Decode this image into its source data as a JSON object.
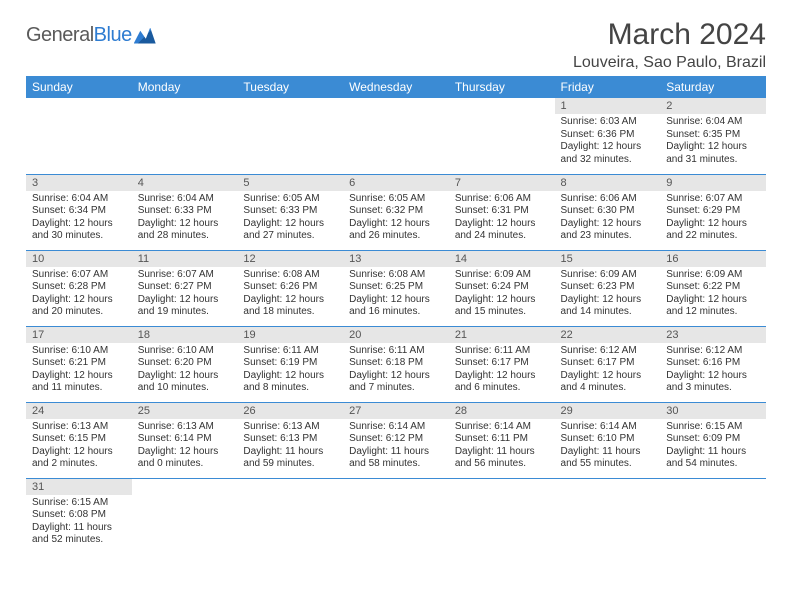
{
  "brand": {
    "part1": "General",
    "part2": "Blue"
  },
  "title": "March 2024",
  "location": "Louveira, Sao Paulo, Brazil",
  "colors": {
    "header_bg": "#3b8bd4",
    "header_text": "#ffffff",
    "daynum_bg": "#e6e6e6",
    "border": "#3b8bd4",
    "title_color": "#444444",
    "body_text": "#333333"
  },
  "typography": {
    "title_fontsize": 30,
    "location_fontsize": 16,
    "dayhead_fontsize": 12,
    "daynum_fontsize": 11,
    "cell_fontsize": 10
  },
  "day_headers": [
    "Sunday",
    "Monday",
    "Tuesday",
    "Wednesday",
    "Thursday",
    "Friday",
    "Saturday"
  ],
  "weeks": [
    [
      null,
      null,
      null,
      null,
      null,
      {
        "n": "1",
        "sr": "Sunrise: 6:03 AM",
        "ss": "Sunset: 6:36 PM",
        "d1": "Daylight: 12 hours",
        "d2": "and 32 minutes."
      },
      {
        "n": "2",
        "sr": "Sunrise: 6:04 AM",
        "ss": "Sunset: 6:35 PM",
        "d1": "Daylight: 12 hours",
        "d2": "and 31 minutes."
      }
    ],
    [
      {
        "n": "3",
        "sr": "Sunrise: 6:04 AM",
        "ss": "Sunset: 6:34 PM",
        "d1": "Daylight: 12 hours",
        "d2": "and 30 minutes."
      },
      {
        "n": "4",
        "sr": "Sunrise: 6:04 AM",
        "ss": "Sunset: 6:33 PM",
        "d1": "Daylight: 12 hours",
        "d2": "and 28 minutes."
      },
      {
        "n": "5",
        "sr": "Sunrise: 6:05 AM",
        "ss": "Sunset: 6:33 PM",
        "d1": "Daylight: 12 hours",
        "d2": "and 27 minutes."
      },
      {
        "n": "6",
        "sr": "Sunrise: 6:05 AM",
        "ss": "Sunset: 6:32 PM",
        "d1": "Daylight: 12 hours",
        "d2": "and 26 minutes."
      },
      {
        "n": "7",
        "sr": "Sunrise: 6:06 AM",
        "ss": "Sunset: 6:31 PM",
        "d1": "Daylight: 12 hours",
        "d2": "and 24 minutes."
      },
      {
        "n": "8",
        "sr": "Sunrise: 6:06 AM",
        "ss": "Sunset: 6:30 PM",
        "d1": "Daylight: 12 hours",
        "d2": "and 23 minutes."
      },
      {
        "n": "9",
        "sr": "Sunrise: 6:07 AM",
        "ss": "Sunset: 6:29 PM",
        "d1": "Daylight: 12 hours",
        "d2": "and 22 minutes."
      }
    ],
    [
      {
        "n": "10",
        "sr": "Sunrise: 6:07 AM",
        "ss": "Sunset: 6:28 PM",
        "d1": "Daylight: 12 hours",
        "d2": "and 20 minutes."
      },
      {
        "n": "11",
        "sr": "Sunrise: 6:07 AM",
        "ss": "Sunset: 6:27 PM",
        "d1": "Daylight: 12 hours",
        "d2": "and 19 minutes."
      },
      {
        "n": "12",
        "sr": "Sunrise: 6:08 AM",
        "ss": "Sunset: 6:26 PM",
        "d1": "Daylight: 12 hours",
        "d2": "and 18 minutes."
      },
      {
        "n": "13",
        "sr": "Sunrise: 6:08 AM",
        "ss": "Sunset: 6:25 PM",
        "d1": "Daylight: 12 hours",
        "d2": "and 16 minutes."
      },
      {
        "n": "14",
        "sr": "Sunrise: 6:09 AM",
        "ss": "Sunset: 6:24 PM",
        "d1": "Daylight: 12 hours",
        "d2": "and 15 minutes."
      },
      {
        "n": "15",
        "sr": "Sunrise: 6:09 AM",
        "ss": "Sunset: 6:23 PM",
        "d1": "Daylight: 12 hours",
        "d2": "and 14 minutes."
      },
      {
        "n": "16",
        "sr": "Sunrise: 6:09 AM",
        "ss": "Sunset: 6:22 PM",
        "d1": "Daylight: 12 hours",
        "d2": "and 12 minutes."
      }
    ],
    [
      {
        "n": "17",
        "sr": "Sunrise: 6:10 AM",
        "ss": "Sunset: 6:21 PM",
        "d1": "Daylight: 12 hours",
        "d2": "and 11 minutes."
      },
      {
        "n": "18",
        "sr": "Sunrise: 6:10 AM",
        "ss": "Sunset: 6:20 PM",
        "d1": "Daylight: 12 hours",
        "d2": "and 10 minutes."
      },
      {
        "n": "19",
        "sr": "Sunrise: 6:11 AM",
        "ss": "Sunset: 6:19 PM",
        "d1": "Daylight: 12 hours",
        "d2": "and 8 minutes."
      },
      {
        "n": "20",
        "sr": "Sunrise: 6:11 AM",
        "ss": "Sunset: 6:18 PM",
        "d1": "Daylight: 12 hours",
        "d2": "and 7 minutes."
      },
      {
        "n": "21",
        "sr": "Sunrise: 6:11 AM",
        "ss": "Sunset: 6:17 PM",
        "d1": "Daylight: 12 hours",
        "d2": "and 6 minutes."
      },
      {
        "n": "22",
        "sr": "Sunrise: 6:12 AM",
        "ss": "Sunset: 6:17 PM",
        "d1": "Daylight: 12 hours",
        "d2": "and 4 minutes."
      },
      {
        "n": "23",
        "sr": "Sunrise: 6:12 AM",
        "ss": "Sunset: 6:16 PM",
        "d1": "Daylight: 12 hours",
        "d2": "and 3 minutes."
      }
    ],
    [
      {
        "n": "24",
        "sr": "Sunrise: 6:13 AM",
        "ss": "Sunset: 6:15 PM",
        "d1": "Daylight: 12 hours",
        "d2": "and 2 minutes."
      },
      {
        "n": "25",
        "sr": "Sunrise: 6:13 AM",
        "ss": "Sunset: 6:14 PM",
        "d1": "Daylight: 12 hours",
        "d2": "and 0 minutes."
      },
      {
        "n": "26",
        "sr": "Sunrise: 6:13 AM",
        "ss": "Sunset: 6:13 PM",
        "d1": "Daylight: 11 hours",
        "d2": "and 59 minutes."
      },
      {
        "n": "27",
        "sr": "Sunrise: 6:14 AM",
        "ss": "Sunset: 6:12 PM",
        "d1": "Daylight: 11 hours",
        "d2": "and 58 minutes."
      },
      {
        "n": "28",
        "sr": "Sunrise: 6:14 AM",
        "ss": "Sunset: 6:11 PM",
        "d1": "Daylight: 11 hours",
        "d2": "and 56 minutes."
      },
      {
        "n": "29",
        "sr": "Sunrise: 6:14 AM",
        "ss": "Sunset: 6:10 PM",
        "d1": "Daylight: 11 hours",
        "d2": "and 55 minutes."
      },
      {
        "n": "30",
        "sr": "Sunrise: 6:15 AM",
        "ss": "Sunset: 6:09 PM",
        "d1": "Daylight: 11 hours",
        "d2": "and 54 minutes."
      }
    ],
    [
      {
        "n": "31",
        "sr": "Sunrise: 6:15 AM",
        "ss": "Sunset: 6:08 PM",
        "d1": "Daylight: 11 hours",
        "d2": "and 52 minutes."
      },
      null,
      null,
      null,
      null,
      null,
      null
    ]
  ]
}
